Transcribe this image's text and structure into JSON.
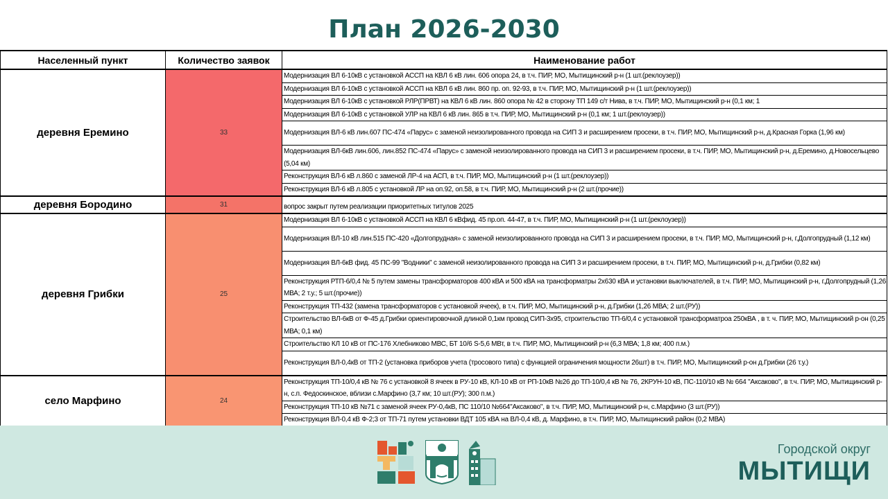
{
  "title": "План 2026-2030",
  "table": {
    "headers": [
      "Населенный пункт",
      "Количество заявок",
      "Наименование работ"
    ],
    "groups": [
      {
        "place": "деревня Еремино",
        "count": "33",
        "color": "#f4696b",
        "works": [
          "Модернизация ВЛ 6-10кВ с установкой АССП на КВЛ 6 кВ лин. 606 опора 24, в т.ч. ПИР, МО, Мытищинский р-н (1 шт.(реклоузер))",
          "Модернизация ВЛ 6-10кВ с установкой АССП на КВЛ 6 кВ лин. 860 пр. оп. 92-93, в т.ч. ПИР, МО, Мытищинский р-н (1 шт.(реклоузер))",
          "Модернизация ВЛ 6-10кВ с установкой РЛР(ПРВТ) на КВЛ 6 кВ лин. 860 опора № 42 в сторону ТП 149 с/т Нива, в т.ч. ПИР, МО, Мытищинский р-н (0,1 км; 1",
          "Модернизация ВЛ 6-10кВ с установкой УЛР на КВЛ 6 кВ лин. 865 в т.ч. ПИР, МО, Мытищинский р-н (0,1 км; 1 шт.(реклоузер))",
          "Модернизация ВЛ-6 кВ лин.607 ПС-474 «Парус» с заменой неизолированного провода на СИП 3 и расширением просеки, в т.ч. ПИР, МО, Мытищинский р-н, д.Красная Горка (1,96 км)",
          "Модернизация ВЛ-6кВ лин.606, лин.852 ПС-474 «Парус» с заменой неизолированного провода на СИП 3 и расширением просеки, в т.ч. ПИР, МО, Мытищинский р-н, д.Еремино, д.Новосельцево (5,04 км)",
          "Реконструкция ВЛ-6 кВ л.860 с заменой ЛР-4 на АСП, в т.ч. ПИР, МО, Мытищинский р-н (1 шт.(реклоузер))",
          "Реконструкция ВЛ-6 кВ л.805 с установкой ЛР на оп.92, оп.58, в т.ч. ПИР, МО, Мытищинский р-н (2 шт.(прочие))"
        ]
      },
      {
        "place": "деревня Бородино",
        "count": "31",
        "color": "#f47368",
        "works": [
          "вопрос закрыт путем реализации приоритетных титулов 2025"
        ]
      },
      {
        "place": "деревня Грибки",
        "count": "25",
        "color": "#f88f70",
        "works": [
          "Модернизация ВЛ 6-10кВ с установкой АССП на КВЛ 6 кВфид. 45 пр.оп. 44-47, в т.ч. ПИР, МО, Мытищинский р-н (1 шт.(реклоузер))",
          "Модернизация ВЛ-10 кВ лин.515 ПС-420 «Долгопрудная» с заменой неизолированного провода на СИП 3 и расширением просеки, в т.ч. ПИР, МО, Мытищинский р-н, г.Долгопрудный (1,12 км)",
          "Модернизация ВЛ-6кВ фид. 45 ПС-99 \"Водники\" с заменой неизолированного провода на СИП 3 и расширением просеки, в т.ч. ПИР, МО, Мытищинский р-н, д.Грибки (0,82 км)",
          "Реконструкция РТП-6/0,4 № 5 путем замены трансформаторов 400 кВА и 500 кВА на трансформатры 2х630 кВА и установки выключателей, в т.ч. ПИР, МО, Мытищинский р-н, г.Долгопрудный (1,26 МВА; 2 т.у.; 5 шт.(прочие))",
          "Реконструкция ТП-432 (замена трансформаторов с установкой ячеек), в т.ч. ПИР, МО, Мытищинский р-н, д.Грибки (1,26 МВА; 2 шт.(РУ))",
          "Строительство ВЛ-6кВ от Ф-45 д.Грибки ориентировочной длиной 0,1км провод СИП-3х95, строительство ТП-6/0,4 с установкой трансформатроа 250кВА , в т. ч. ПИР, МО, Мытищинский р-он (0,25 МВА; 0,1 км)",
          "Строительство КЛ 10 кВ от ПС-176 Хлебниково МВС, БТ 10/6 S-5,6 МВт, в т.ч. ПИР, МО, Мытищинский р-н (6,3 МВА; 1,8 км; 400 п.м.)",
          "Реконструкция ВЛ-0,4кВ от ТП-2 (установка приборов учета (тросового типа) с функцией ограничения мощности 26шт) в т.ч. ПИР, МО, Мытищинский р-он д.Грибки (26 т.у.)"
        ]
      },
      {
        "place": "село Марфино",
        "count": "24",
        "color": "#f99572",
        "works": [
          "Реконструкция ТП-10/0,4 кВ № 76 с установкой 8 ячеек в РУ-10 кВ, КЛ-10 кВ от РП-10кВ №26 до ТП-10/0,4 кВ № 76, 2КРУН-10 кВ, ПС-110/10 кВ № 664 \"Аксаково\", в т.ч. ПИР, МО, Мытищинский р-н, с.п. Федоскинское, вблизи с.Марфино (3,7 км; 10 шт.(РУ); 300 п.м.)",
          "Реконструкция ТП-10 кВ №71 с заменой ячеек РУ-0,4кВ, ПС 110/10 №664\"Аксаково\", в т.ч. ПИР, МО, Мытищинский р-н, с.Марфино (3 шт.(РУ))",
          "Реконструкция ВЛ-0,4 кВ Ф-2;3 от ТП-71 путем установки ВДТ 105 кВА на ВЛ-0,4 кВ, д. Марфино, в т.ч. ПИР, МО, Мытищинский район (0,2 МВА)"
        ]
      }
    ]
  },
  "footer": {
    "subtitle": "Городской округ",
    "name": "МЫТИЩИ",
    "logos": [
      "mytishchi-logo",
      "coat-of-arms",
      "building-logo"
    ],
    "logo_text": "МЫТИ"
  }
}
